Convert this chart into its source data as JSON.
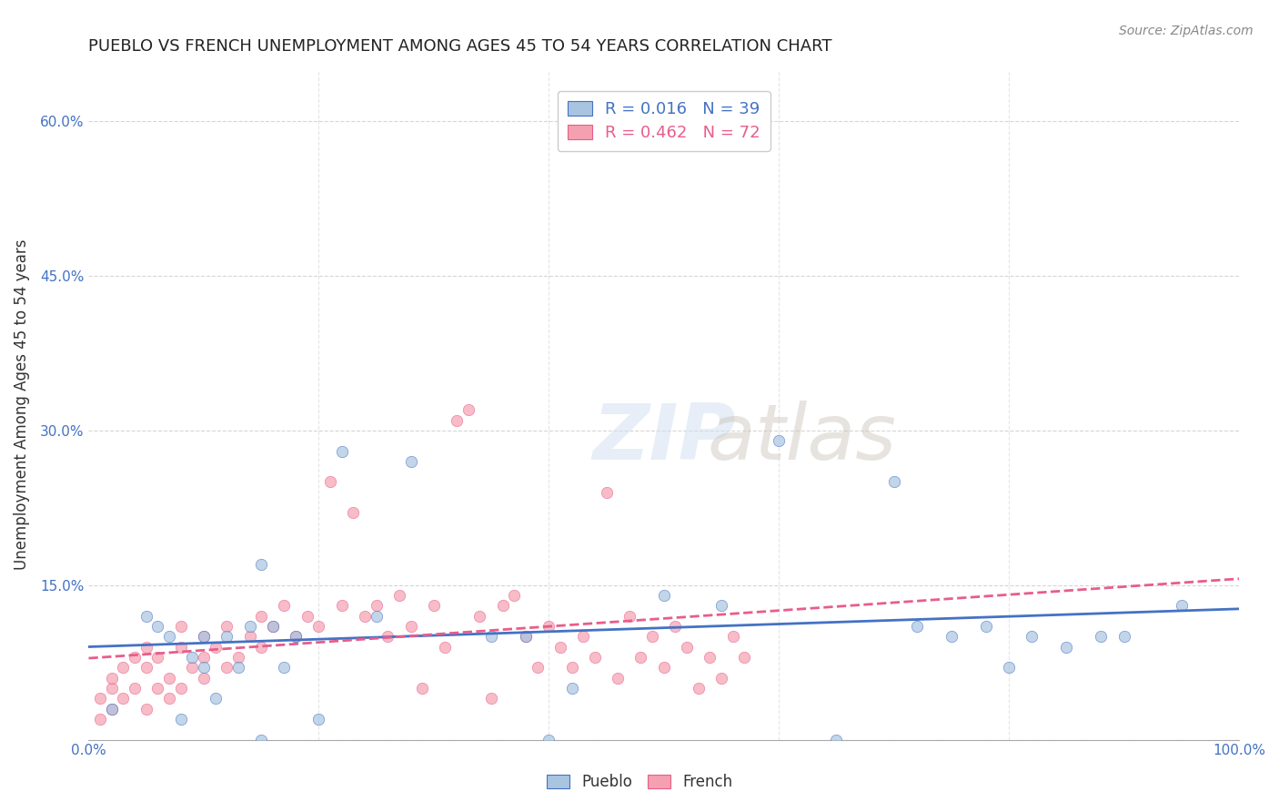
{
  "title": "PUEBLO VS FRENCH UNEMPLOYMENT AMONG AGES 45 TO 54 YEARS CORRELATION CHART",
  "source": "Source: ZipAtlas.com",
  "xlabel": "",
  "ylabel": "Unemployment Among Ages 45 to 54 years",
  "xlim": [
    0,
    100
  ],
  "ylim": [
    0,
    65
  ],
  "xticks": [
    0,
    100
  ],
  "xtick_labels": [
    "0.0%",
    "100.0%"
  ],
  "ytick_labels": [
    "",
    "15.0%",
    "30.0%",
    "45.0%",
    "60.0%"
  ],
  "ytick_positions": [
    0,
    15,
    30,
    45,
    60
  ],
  "legend_entries": [
    {
      "label": "R = 0.016   N = 39",
      "color": "#a8c4e0"
    },
    {
      "label": "R = 0.462   N = 72",
      "color": "#f4a0b0"
    }
  ],
  "pueblo_color": "#a8c4e0",
  "french_color": "#f4a0b0",
  "pueblo_line_color": "#4472c4",
  "french_line_color": "#e85d8a",
  "background_color": "#ffffff",
  "grid_color": "#cccccc",
  "watermark": "ZIPatlas",
  "pueblo_R": 0.016,
  "french_R": 0.462,
  "pueblo_N": 39,
  "french_N": 72,
  "pueblo_x": [
    2,
    5,
    6,
    7,
    8,
    9,
    10,
    10,
    11,
    12,
    13,
    14,
    15,
    15,
    16,
    17,
    18,
    20,
    22,
    25,
    28,
    35,
    38,
    40,
    42,
    50,
    55,
    60,
    65,
    70,
    72,
    75,
    78,
    80,
    82,
    85,
    88,
    90,
    95
  ],
  "pueblo_y": [
    3,
    12,
    11,
    10,
    2,
    8,
    10,
    7,
    4,
    10,
    7,
    11,
    17,
    0,
    11,
    7,
    10,
    2,
    28,
    12,
    27,
    10,
    10,
    0,
    5,
    14,
    13,
    29,
    0,
    25,
    11,
    10,
    11,
    7,
    10,
    9,
    10,
    10,
    13
  ],
  "french_x": [
    1,
    1,
    2,
    2,
    2,
    3,
    3,
    4,
    4,
    5,
    5,
    5,
    6,
    6,
    7,
    7,
    8,
    8,
    8,
    9,
    10,
    10,
    10,
    11,
    12,
    12,
    13,
    14,
    15,
    15,
    16,
    17,
    18,
    19,
    20,
    21,
    22,
    23,
    24,
    25,
    26,
    27,
    28,
    29,
    30,
    31,
    32,
    33,
    34,
    35,
    36,
    37,
    38,
    39,
    40,
    41,
    42,
    43,
    44,
    45,
    46,
    47,
    48,
    49,
    50,
    51,
    52,
    53,
    54,
    55,
    56,
    57
  ],
  "french_y": [
    2,
    4,
    3,
    5,
    6,
    4,
    7,
    5,
    8,
    3,
    7,
    9,
    5,
    8,
    4,
    6,
    5,
    9,
    11,
    7,
    8,
    6,
    10,
    9,
    7,
    11,
    8,
    10,
    9,
    12,
    11,
    13,
    10,
    12,
    11,
    25,
    13,
    22,
    12,
    13,
    10,
    14,
    11,
    5,
    13,
    9,
    31,
    32,
    12,
    4,
    13,
    14,
    10,
    7,
    11,
    9,
    7,
    10,
    8,
    24,
    6,
    12,
    8,
    10,
    7,
    11,
    9,
    5,
    8,
    6,
    10,
    8
  ]
}
